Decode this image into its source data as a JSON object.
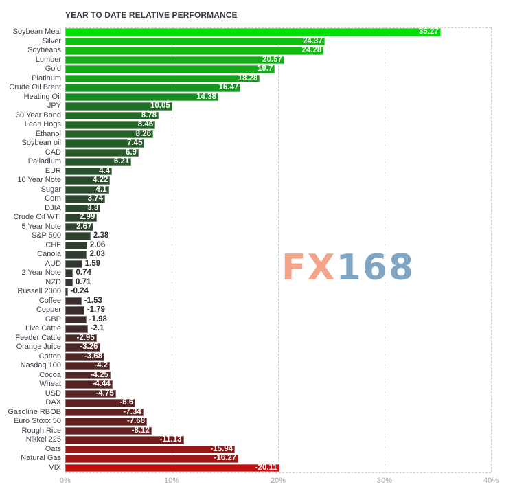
{
  "chart_data": {
    "type": "bar",
    "orientation": "horizontal",
    "title": "YEAR TO DATE RELATIVE PERFORMANCE",
    "xlabel": "",
    "ylabel": "",
    "xlim": [
      0,
      40
    ],
    "x_ticks": [
      "0%",
      "10%",
      "20%",
      "30%",
      "40%"
    ],
    "grid": true,
    "bar_length": "absolute value",
    "color_scale": "bright green (largest gain) to dark green to dark brown to bright red (largest loss)",
    "categories": [
      "Soybean Meal",
      "Silver",
      "Soybeans",
      "Lumber",
      "Gold",
      "Platinum",
      "Crude Oil Brent",
      "Heating Oil",
      "JPY",
      "30 Year Bond",
      "Lean Hogs",
      "Ethanol",
      "Soybean oil",
      "CAD",
      "Palladium",
      "EUR",
      "10 Year Note",
      "Sugar",
      "Corn",
      "DJIA",
      "Crude Oil WTI",
      "5 Year Note",
      "S&P 500",
      "CHF",
      "Canola",
      "AUD",
      "2 Year Note",
      "NZD",
      "Russell 2000",
      "Coffee",
      "Copper",
      "GBP",
      "Live Cattle",
      "Feeder Cattle",
      "Orange Juice",
      "Cotton",
      "Nasdaq 100",
      "Cocoa",
      "Wheat",
      "USD",
      "DAX",
      "Gasoline RBOB",
      "Euro Stoxx 50",
      "Rough Rice",
      "Nikkei 225",
      "Oats",
      "Natural Gas",
      "VIX"
    ],
    "values": [
      35.27,
      24.37,
      24.28,
      20.57,
      19.7,
      18.28,
      16.47,
      14.38,
      10.05,
      8.78,
      8.46,
      8.26,
      7.45,
      6.9,
      6.21,
      4.4,
      4.22,
      4.1,
      3.74,
      3.3,
      2.99,
      2.67,
      2.38,
      2.06,
      2.03,
      1.59,
      0.74,
      0.71,
      -0.24,
      -1.53,
      -1.79,
      -1.98,
      -2.1,
      -2.95,
      -3.26,
      -3.68,
      -4.2,
      -4.25,
      -4.44,
      -4.75,
      -6.6,
      -7.34,
      -7.68,
      -8.12,
      -11.13,
      -15.94,
      -16.27,
      -20.11
    ],
    "value_labels": [
      "35.27",
      "24.37",
      "24.28",
      "20.57",
      "19.7",
      "18.28",
      "16.47",
      "14.38",
      "10.05",
      "8.78",
      "8.46",
      "8.26",
      "7.45",
      "6.9",
      "6.21",
      "4.4",
      "4.22",
      "4.1",
      "3.74",
      "3.3",
      "2.99",
      "2.67",
      "2.38",
      "2.06",
      "2.03",
      "1.59",
      "0.74",
      "0.71",
      "-0.24",
      "-1.53",
      "-1.79",
      "-1.98",
      "-2.1",
      "-2.95",
      "-3.26",
      "-3.68",
      "-4.2",
      "-4.25",
      "-4.44",
      "-4.75",
      "-6.6",
      "-7.34",
      "-7.68",
      "-8.12",
      "-11.13",
      "-15.94",
      "-16.27",
      "-20.11"
    ],
    "colors": [
      "#00e000",
      "#10c010",
      "#12bd12",
      "#14ad18",
      "#15a819",
      "#16a01a",
      "#179520",
      "#188a20",
      "#1f6e24",
      "#216a26",
      "#236527",
      "#246227",
      "#255e28",
      "#265a29",
      "#27562a",
      "#28502b",
      "#294d2c",
      "#2a4b2c",
      "#2b482d",
      "#2c462e",
      "#2d442e",
      "#2e422f",
      "#2f402f",
      "#303e30",
      "#313c31",
      "#323a32",
      "#333733",
      "#343534",
      "#363233",
      "#3c2c2c",
      "#3e2b2b",
      "#3f2a2a",
      "#40292a",
      "#4a2828",
      "#4c2727",
      "#4e2626",
      "#522525",
      "#532525",
      "#552424",
      "#572424",
      "#5e2222",
      "#622222",
      "#642121",
      "#672020",
      "#721d1d",
      "#9a1818",
      "#a01717",
      "#c01010"
    ]
  },
  "watermark": {
    "fx": "FX",
    "num": "168"
  }
}
